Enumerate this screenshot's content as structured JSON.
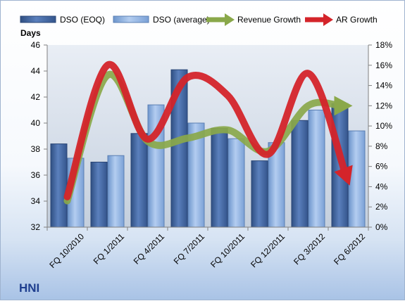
{
  "chart_data": {
    "type": "bar",
    "ticker": "HNI",
    "ylabel_left": "Days",
    "categories": [
      "FQ 10/2010",
      "FQ 1/2011",
      "FQ 4/2011",
      "FQ 7/2011",
      "FQ 10/2011",
      "FQ 12/2011",
      "FQ 3/2012",
      "FQ 6/2012"
    ],
    "left_axis": {
      "min": 32,
      "max": 46,
      "step": 2
    },
    "right_axis": {
      "min": 0,
      "max": 18,
      "step": 2,
      "format": "percent"
    },
    "series": [
      {
        "name": "DSO (EOQ)",
        "kind": "bar",
        "axis": "left",
        "color": "#4a6ea8",
        "values": [
          38.4,
          37.0,
          39.2,
          44.1,
          39.6,
          37.1,
          40.2,
          41.5
        ]
      },
      {
        "name": "DSO (average)",
        "kind": "bar",
        "axis": "left",
        "color": "#8fb4e3",
        "values": [
          37.3,
          37.5,
          41.4,
          40.0,
          38.8,
          38.5,
          41.0,
          39.4
        ]
      },
      {
        "name": "Revenue Growth",
        "kind": "line-arrow",
        "axis": "right",
        "color": "#8aa84a",
        "values": [
          2.6,
          15.0,
          8.5,
          8.8,
          9.6,
          7.5,
          12.0,
          12.0
        ]
      },
      {
        "name": "AR Growth",
        "kind": "line-arrow",
        "axis": "right",
        "color": "#d4242a",
        "values": [
          3.0,
          16.0,
          8.7,
          14.8,
          13.0,
          7.2,
          15.2,
          4.5
        ]
      }
    ],
    "legend_position": "top",
    "grid": false
  }
}
